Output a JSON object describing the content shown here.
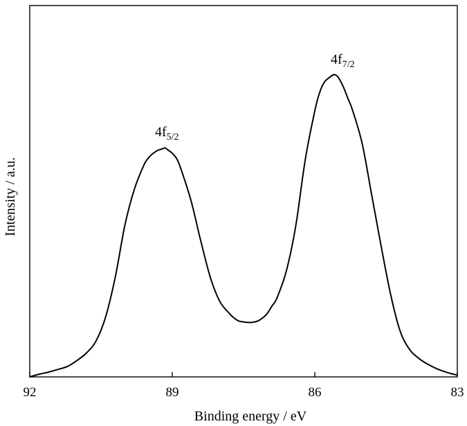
{
  "chart_data": {
    "type": "line",
    "title": "",
    "xlabel": "Binding energy / eV",
    "ylabel": "Intensity / a.u.",
    "x_reversed": true,
    "xlim": [
      92,
      83
    ],
    "ylim": [
      0,
      100
    ],
    "x_ticks": [
      92,
      89,
      86,
      83
    ],
    "x_tick_labels": [
      "92",
      "89",
      "86",
      "83"
    ],
    "y_tick_labels_shown": false,
    "grid": false,
    "legend": "none",
    "annotations": [
      {
        "base": "4f",
        "sub": "5/2",
        "x": 89.2,
        "y": 76
      },
      {
        "base": "4f",
        "sub": "7/2",
        "x": 85.5,
        "y": 100
      }
    ],
    "series": [
      {
        "color": "#000000",
        "x": [
          92.0,
          91.8,
          91.6,
          91.4,
          91.2,
          91.0,
          90.8,
          90.6,
          90.4,
          90.2,
          90.0,
          89.8,
          89.6,
          89.5,
          89.4,
          89.3,
          89.2,
          89.15,
          89.1,
          89.0,
          88.9,
          88.8,
          88.6,
          88.4,
          88.2,
          88.0,
          87.8,
          87.7,
          87.6,
          87.5,
          87.4,
          87.3,
          87.2,
          87.1,
          87.0,
          86.9,
          86.8,
          86.6,
          86.4,
          86.2,
          86.0,
          85.9,
          85.8,
          85.7,
          85.6,
          85.55,
          85.5,
          85.4,
          85.3,
          85.2,
          85.0,
          84.8,
          84.6,
          84.4,
          84.2,
          84.0,
          83.8,
          83.6,
          83.4,
          83.2,
          83.0
        ],
        "y": [
          0.0,
          0.9,
          1.6,
          2.5,
          3.5,
          5.5,
          8.0,
          12.0,
          20.0,
          33.0,
          50.0,
          62.0,
          70.0,
          72.5,
          74.0,
          75.0,
          75.5,
          75.8,
          75.2,
          74.0,
          72.0,
          68.0,
          58.0,
          45.0,
          33.0,
          25.0,
          21.0,
          19.5,
          18.5,
          18.2,
          18.0,
          18.1,
          18.5,
          19.5,
          21.0,
          23.5,
          26.0,
          35.0,
          50.0,
          72.0,
          88.0,
          94.0,
          97.5,
          99.0,
          100.0,
          99.8,
          99.0,
          96.0,
          92.0,
          88.0,
          77.0,
          60.0,
          43.0,
          27.0,
          15.0,
          9.0,
          6.0,
          4.0,
          2.5,
          1.4,
          0.6
        ]
      }
    ]
  }
}
